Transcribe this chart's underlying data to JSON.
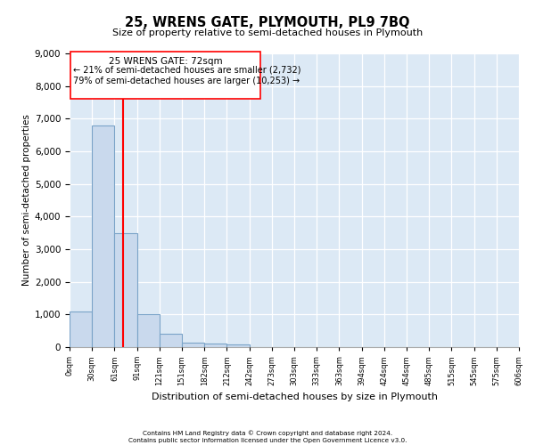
{
  "title": "25, WRENS GATE, PLYMOUTH, PL9 7BQ",
  "subtitle": "Size of property relative to semi-detached houses in Plymouth",
  "xlabel": "Distribution of semi-detached houses by size in Plymouth",
  "ylabel": "Number of semi-detached properties",
  "bar_color": "#c9d9ed",
  "bar_edge_color": "#7aa3c8",
  "bin_labels": [
    "0sqm",
    "30sqm",
    "61sqm",
    "91sqm",
    "121sqm",
    "151sqm",
    "182sqm",
    "212sqm",
    "242sqm",
    "273sqm",
    "303sqm",
    "333sqm",
    "363sqm",
    "394sqm",
    "424sqm",
    "454sqm",
    "485sqm",
    "515sqm",
    "545sqm",
    "575sqm",
    "606sqm"
  ],
  "bar_values": [
    1100,
    6800,
    3500,
    1000,
    400,
    150,
    100,
    80,
    0,
    0,
    0,
    0,
    0,
    0,
    0,
    0,
    0,
    0,
    0,
    0
  ],
  "annotation_text_line1": "25 WRENS GATE: 72sqm",
  "annotation_text_line2": "← 21% of semi-detached houses are smaller (2,732)",
  "annotation_text_line3": "79% of semi-detached houses are larger (10,253) →",
  "ylim": [
    0,
    9000
  ],
  "plot_bg_color": "#dce9f5",
  "footer_line1": "Contains HM Land Registry data © Crown copyright and database right 2024.",
  "footer_line2": "Contains public sector information licensed under the Open Government Licence v3.0."
}
